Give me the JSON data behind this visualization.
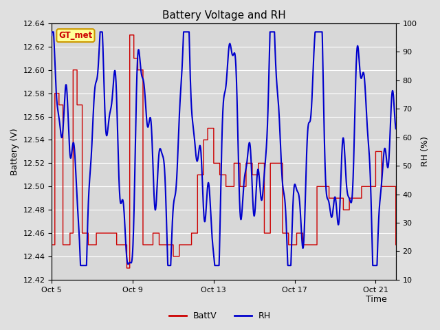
{
  "title": "Battery Voltage and RH",
  "xlabel": "Time",
  "ylabel_left": "Battery (V)",
  "ylabel_right": "RH (%)",
  "ylim_left": [
    12.42,
    12.64
  ],
  "ylim_right": [
    10,
    100
  ],
  "yticks_left": [
    12.42,
    12.44,
    12.46,
    12.48,
    12.5,
    12.52,
    12.54,
    12.56,
    12.58,
    12.6,
    12.62,
    12.64
  ],
  "yticks_right": [
    10,
    20,
    30,
    40,
    50,
    60,
    70,
    80,
    90,
    100
  ],
  "xtick_positions": [
    0,
    4,
    8,
    12,
    16
  ],
  "xtick_labels": [
    "Oct 5",
    "Oct 9",
    "Oct 13",
    "Oct 17",
    "Oct 21"
  ],
  "fig_bg_color": "#e0e0e0",
  "plot_bg_color": "#d8d8d8",
  "grid_color": "#ffffff",
  "batt_color": "#cc0000",
  "rh_color": "#0000cc",
  "legend_labels": [
    "BattV",
    "RH"
  ],
  "watermark_text": "GT_met",
  "watermark_fg": "#cc0000",
  "watermark_bg": "#ffff99",
  "watermark_border": "#cc9900",
  "title_fontsize": 11,
  "label_fontsize": 9,
  "tick_fontsize": 8,
  "xlim": [
    0,
    17
  ]
}
